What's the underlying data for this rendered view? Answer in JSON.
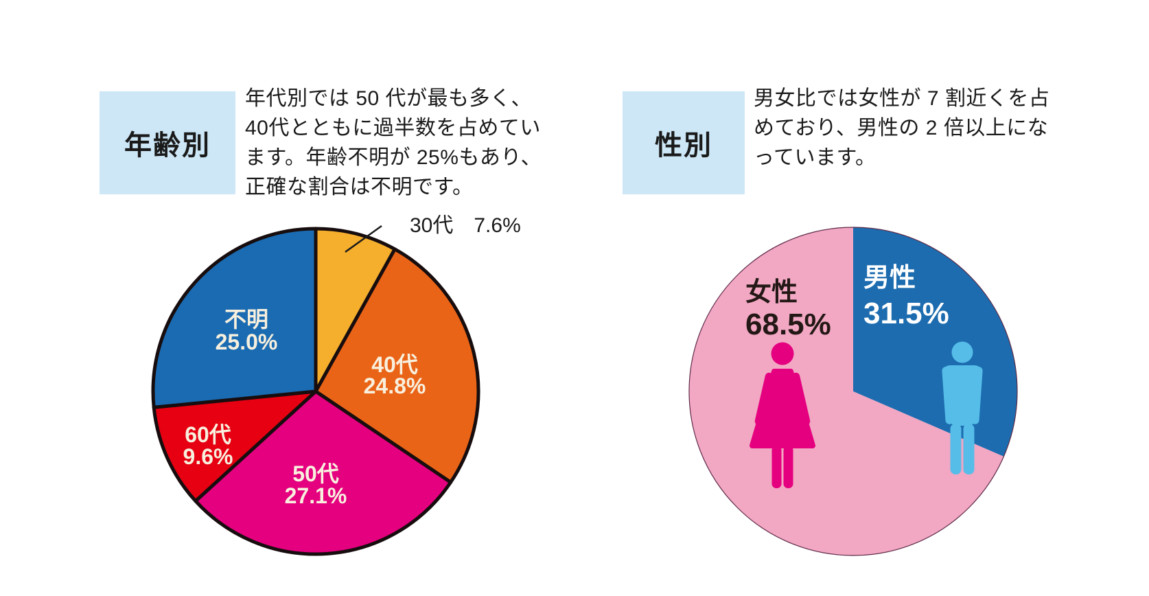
{
  "page": {
    "background": "#FFFFFF"
  },
  "sections": {
    "age": {
      "header": {
        "label": "年齢別",
        "bg": "#CDE7F7",
        "text_color": "#1A1A1A"
      },
      "description": "年代別では 50 代が最も多く、40代とともに過半数を占めています。年齢不明が 25%もあり、正確な割合は不明です。"
    },
    "gender": {
      "header": {
        "label": "性別",
        "bg": "#CDE7F7",
        "text_color": "#1A1A1A"
      },
      "description": "男女比では女性が 7 割近くを占めており、男性の 2 倍以上になっています。"
    }
  },
  "chart_data": [
    {
      "id": "age-pie",
      "type": "pie",
      "title": "年齢別",
      "start_angle_deg": 0,
      "direction": "clockwise",
      "outline_color": "#170D0E",
      "label_color": "#F8F0DE",
      "slices": [
        {
          "label": "30代",
          "value": 7.6,
          "pct_label": "7.6%",
          "color": "#F6AF2C",
          "label_placement": "outside-callout",
          "label_text_color": "#1A1A1A"
        },
        {
          "label": "40代",
          "value": 24.8,
          "pct_label": "24.8%",
          "color": "#EA6417",
          "label_placement": "inside"
        },
        {
          "label": "50代",
          "value": 27.1,
          "pct_label": "27.1%",
          "color": "#E5007F",
          "label_placement": "inside"
        },
        {
          "label": "60代",
          "value": 9.6,
          "pct_label": "9.6%",
          "color": "#E60012",
          "label_placement": "inside"
        },
        {
          "label": "不明",
          "value": 25.0,
          "pct_label": "25.0%",
          "color": "#1A6BB2",
          "label_placement": "inside"
        }
      ]
    },
    {
      "id": "gender-pie",
      "type": "pie",
      "title": "性別",
      "start_angle_deg": 0,
      "direction": "clockwise",
      "ring_color": "#5E2B47",
      "slices": [
        {
          "label": "男性",
          "value": 31.5,
          "pct_label": "31.5%",
          "color": "#1C6CAF",
          "label_text_color": "#FFFFFF",
          "icon": "male-icon",
          "icon_color": "#56BDE9"
        },
        {
          "label": "女性",
          "value": 68.5,
          "pct_label": "68.5%",
          "color": "#F2A7C3",
          "label_text_color": "#231815",
          "icon": "female-icon",
          "icon_color": "#E5007F"
        }
      ]
    }
  ]
}
